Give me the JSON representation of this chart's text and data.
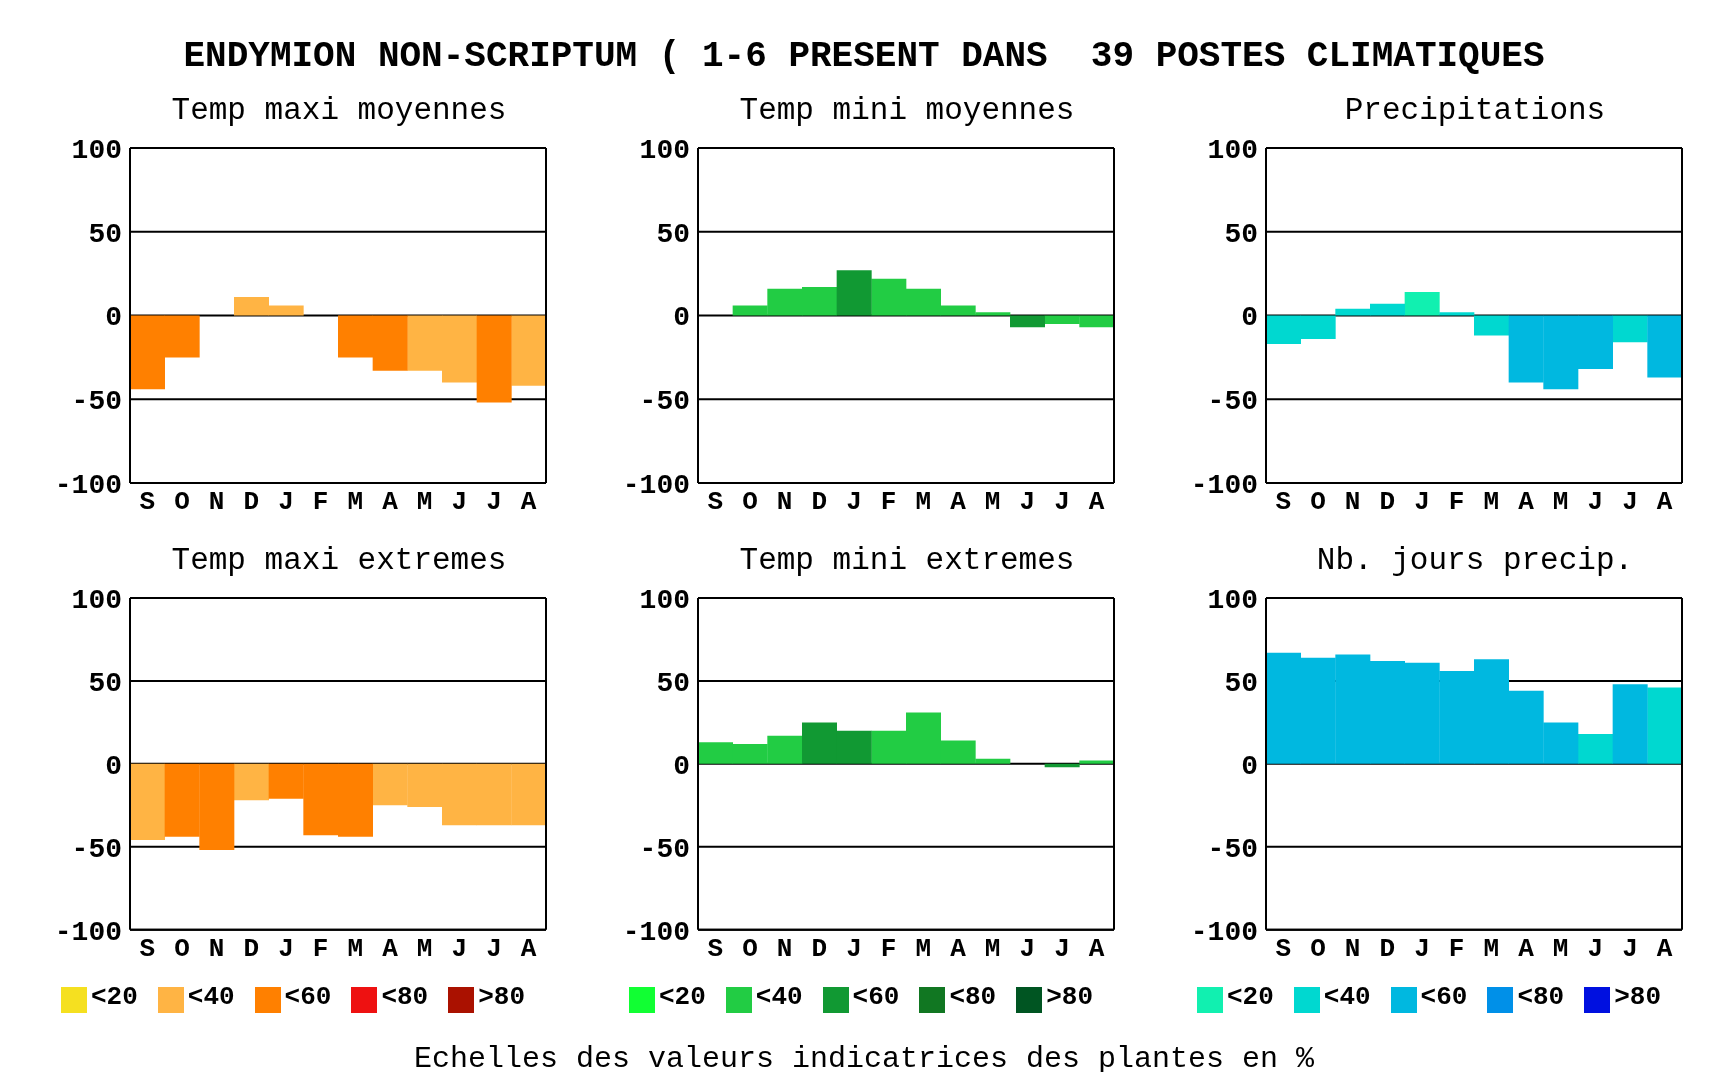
{
  "chart_data": [
    {
      "type": "other",
      "title": "ENDYMION NON-SCRIPTUM ( 1-6 PRESENT DANS  39 POSTES CLIMATIQUES",
      "annotations": [
        "Echelles des valeurs indicatrices des plantes en %"
      ]
    },
    {
      "type": "bar",
      "title": "Temp maxi moyennes",
      "categories": [
        "S",
        "O",
        "N",
        "D",
        "J",
        "F",
        "M",
        "A",
        "M",
        "J",
        "J",
        "A"
      ],
      "stacked": true,
      "ylim": [
        -100,
        100
      ],
      "yticks": [
        -100,
        -50,
        0,
        50,
        100
      ],
      "grid": "y",
      "series": [
        {
          "color": "#ffb444",
          "values": [
            null,
            null,
            0,
            11,
            6,
            0,
            null,
            null,
            -33,
            -40,
            null,
            -42
          ]
        },
        {
          "color": "#ff8000",
          "values": [
            -44,
            -25,
            null,
            null,
            null,
            null,
            -25,
            -33,
            null,
            null,
            -52,
            null
          ]
        }
      ]
    },
    {
      "type": "bar",
      "title": "Temp mini moyennes",
      "categories": [
        "S",
        "O",
        "N",
        "D",
        "J",
        "F",
        "M",
        "A",
        "M",
        "J",
        "J",
        "A"
      ],
      "stacked": true,
      "ylim": [
        -100,
        100
      ],
      "yticks": [
        -100,
        -50,
        0,
        50,
        100
      ],
      "grid": "y",
      "series": [
        {
          "color": "#22cc44",
          "values": [
            0,
            6,
            16,
            17,
            null,
            22,
            16,
            6,
            2,
            null,
            -5,
            -7
          ]
        },
        {
          "color": "#119933",
          "values": [
            null,
            null,
            null,
            null,
            27,
            null,
            null,
            null,
            null,
            -7,
            null,
            null
          ]
        }
      ]
    },
    {
      "type": "bar",
      "title": "Precipitations",
      "categories": [
        "S",
        "O",
        "N",
        "D",
        "J",
        "F",
        "M",
        "A",
        "M",
        "J",
        "J",
        "A"
      ],
      "stacked": true,
      "ylim": [
        -100,
        100
      ],
      "yticks": [
        -100,
        -50,
        0,
        50,
        100
      ],
      "grid": "y",
      "series": [
        {
          "color": "#11f0b0",
          "values": [
            null,
            null,
            null,
            null,
            14,
            null,
            null,
            null,
            null,
            null,
            null,
            null
          ]
        },
        {
          "color": "#00d8d0",
          "values": [
            -17,
            -14,
            4,
            7,
            null,
            2,
            -12,
            null,
            null,
            null,
            -16,
            null
          ]
        },
        {
          "color": "#00b8e0",
          "values": [
            null,
            null,
            null,
            null,
            null,
            null,
            null,
            -40,
            -44,
            -32,
            null,
            -37
          ]
        }
      ]
    },
    {
      "type": "bar",
      "title": "Temp maxi extremes",
      "categories": [
        "S",
        "O",
        "N",
        "D",
        "J",
        "F",
        "M",
        "A",
        "M",
        "J",
        "J",
        "A"
      ],
      "stacked": true,
      "ylim": [
        -100,
        100
      ],
      "yticks": [
        -100,
        -50,
        0,
        50,
        100
      ],
      "grid": "y",
      "legend": "bottom",
      "series": [
        {
          "name": "<20",
          "color": "#f5e020",
          "values": [
            null,
            null,
            null,
            null,
            null,
            null,
            null,
            null,
            null,
            null,
            null,
            null
          ]
        },
        {
          "name": "<40",
          "color": "#ffb444",
          "values": [
            -46,
            null,
            null,
            -22,
            null,
            null,
            null,
            -25,
            -26,
            -37,
            -37,
            -37
          ]
        },
        {
          "name": "<60",
          "color": "#ff8000",
          "values": [
            null,
            -44,
            -52,
            null,
            -21,
            -43,
            -44,
            null,
            null,
            null,
            null,
            null
          ]
        },
        {
          "name": "<80",
          "color": "#ee1111",
          "values": [
            null,
            null,
            null,
            null,
            null,
            null,
            null,
            null,
            null,
            null,
            null,
            null
          ]
        },
        {
          "name": ">80",
          "color": "#aa1100",
          "values": [
            null,
            null,
            null,
            null,
            null,
            null,
            null,
            null,
            null,
            null,
            null,
            null
          ]
        }
      ]
    },
    {
      "type": "bar",
      "title": "Temp mini extremes",
      "categories": [
        "S",
        "O",
        "N",
        "D",
        "J",
        "F",
        "M",
        "A",
        "M",
        "J",
        "J",
        "A"
      ],
      "stacked": true,
      "ylim": [
        -100,
        100
      ],
      "yticks": [
        -100,
        -50,
        0,
        50,
        100
      ],
      "grid": "y",
      "legend": "bottom",
      "series": [
        {
          "name": "<20",
          "color": "#11ff33",
          "values": [
            null,
            null,
            null,
            null,
            null,
            null,
            null,
            null,
            null,
            null,
            null,
            null
          ]
        },
        {
          "name": "<40",
          "color": "#22cc44",
          "values": [
            13,
            12,
            17,
            null,
            null,
            20,
            31,
            14,
            3,
            0,
            null,
            2
          ]
        },
        {
          "name": "<60",
          "color": "#119933",
          "values": [
            null,
            null,
            null,
            25,
            20,
            null,
            null,
            null,
            null,
            null,
            -2,
            null
          ]
        },
        {
          "name": "<80",
          "color": "#117722",
          "values": [
            null,
            null,
            null,
            null,
            null,
            null,
            null,
            null,
            null,
            null,
            null,
            null
          ]
        },
        {
          "name": ">80",
          "color": "#005522",
          "values": [
            null,
            null,
            null,
            null,
            null,
            null,
            null,
            null,
            null,
            null,
            null,
            null
          ]
        }
      ]
    },
    {
      "type": "bar",
      "title": "Nb. jours precip.",
      "categories": [
        "S",
        "O",
        "N",
        "D",
        "J",
        "F",
        "M",
        "A",
        "M",
        "J",
        "J",
        "A"
      ],
      "stacked": true,
      "ylim": [
        -100,
        100
      ],
      "yticks": [
        -100,
        -50,
        0,
        50,
        100
      ],
      "grid": "y",
      "legend": "bottom",
      "series": [
        {
          "name": "<20",
          "color": "#11f0b0",
          "values": [
            null,
            null,
            null,
            null,
            null,
            null,
            null,
            null,
            null,
            null,
            null,
            null
          ]
        },
        {
          "name": "<40",
          "color": "#00d8d0",
          "values": [
            null,
            null,
            null,
            null,
            null,
            null,
            null,
            null,
            null,
            18,
            null,
            46
          ]
        },
        {
          "name": "<60",
          "color": "#00b8e0",
          "values": [
            67,
            64,
            66,
            62,
            61,
            56,
            63,
            44,
            25,
            null,
            48,
            null
          ]
        },
        {
          "name": "<80",
          "color": "#0090e8",
          "values": [
            null,
            null,
            null,
            null,
            null,
            null,
            null,
            null,
            null,
            null,
            null,
            null
          ]
        },
        {
          "name": ">80",
          "color": "#0010e0",
          "values": [
            null,
            null,
            null,
            null,
            null,
            null,
            null,
            null,
            null,
            null,
            null,
            null
          ]
        }
      ]
    }
  ]
}
